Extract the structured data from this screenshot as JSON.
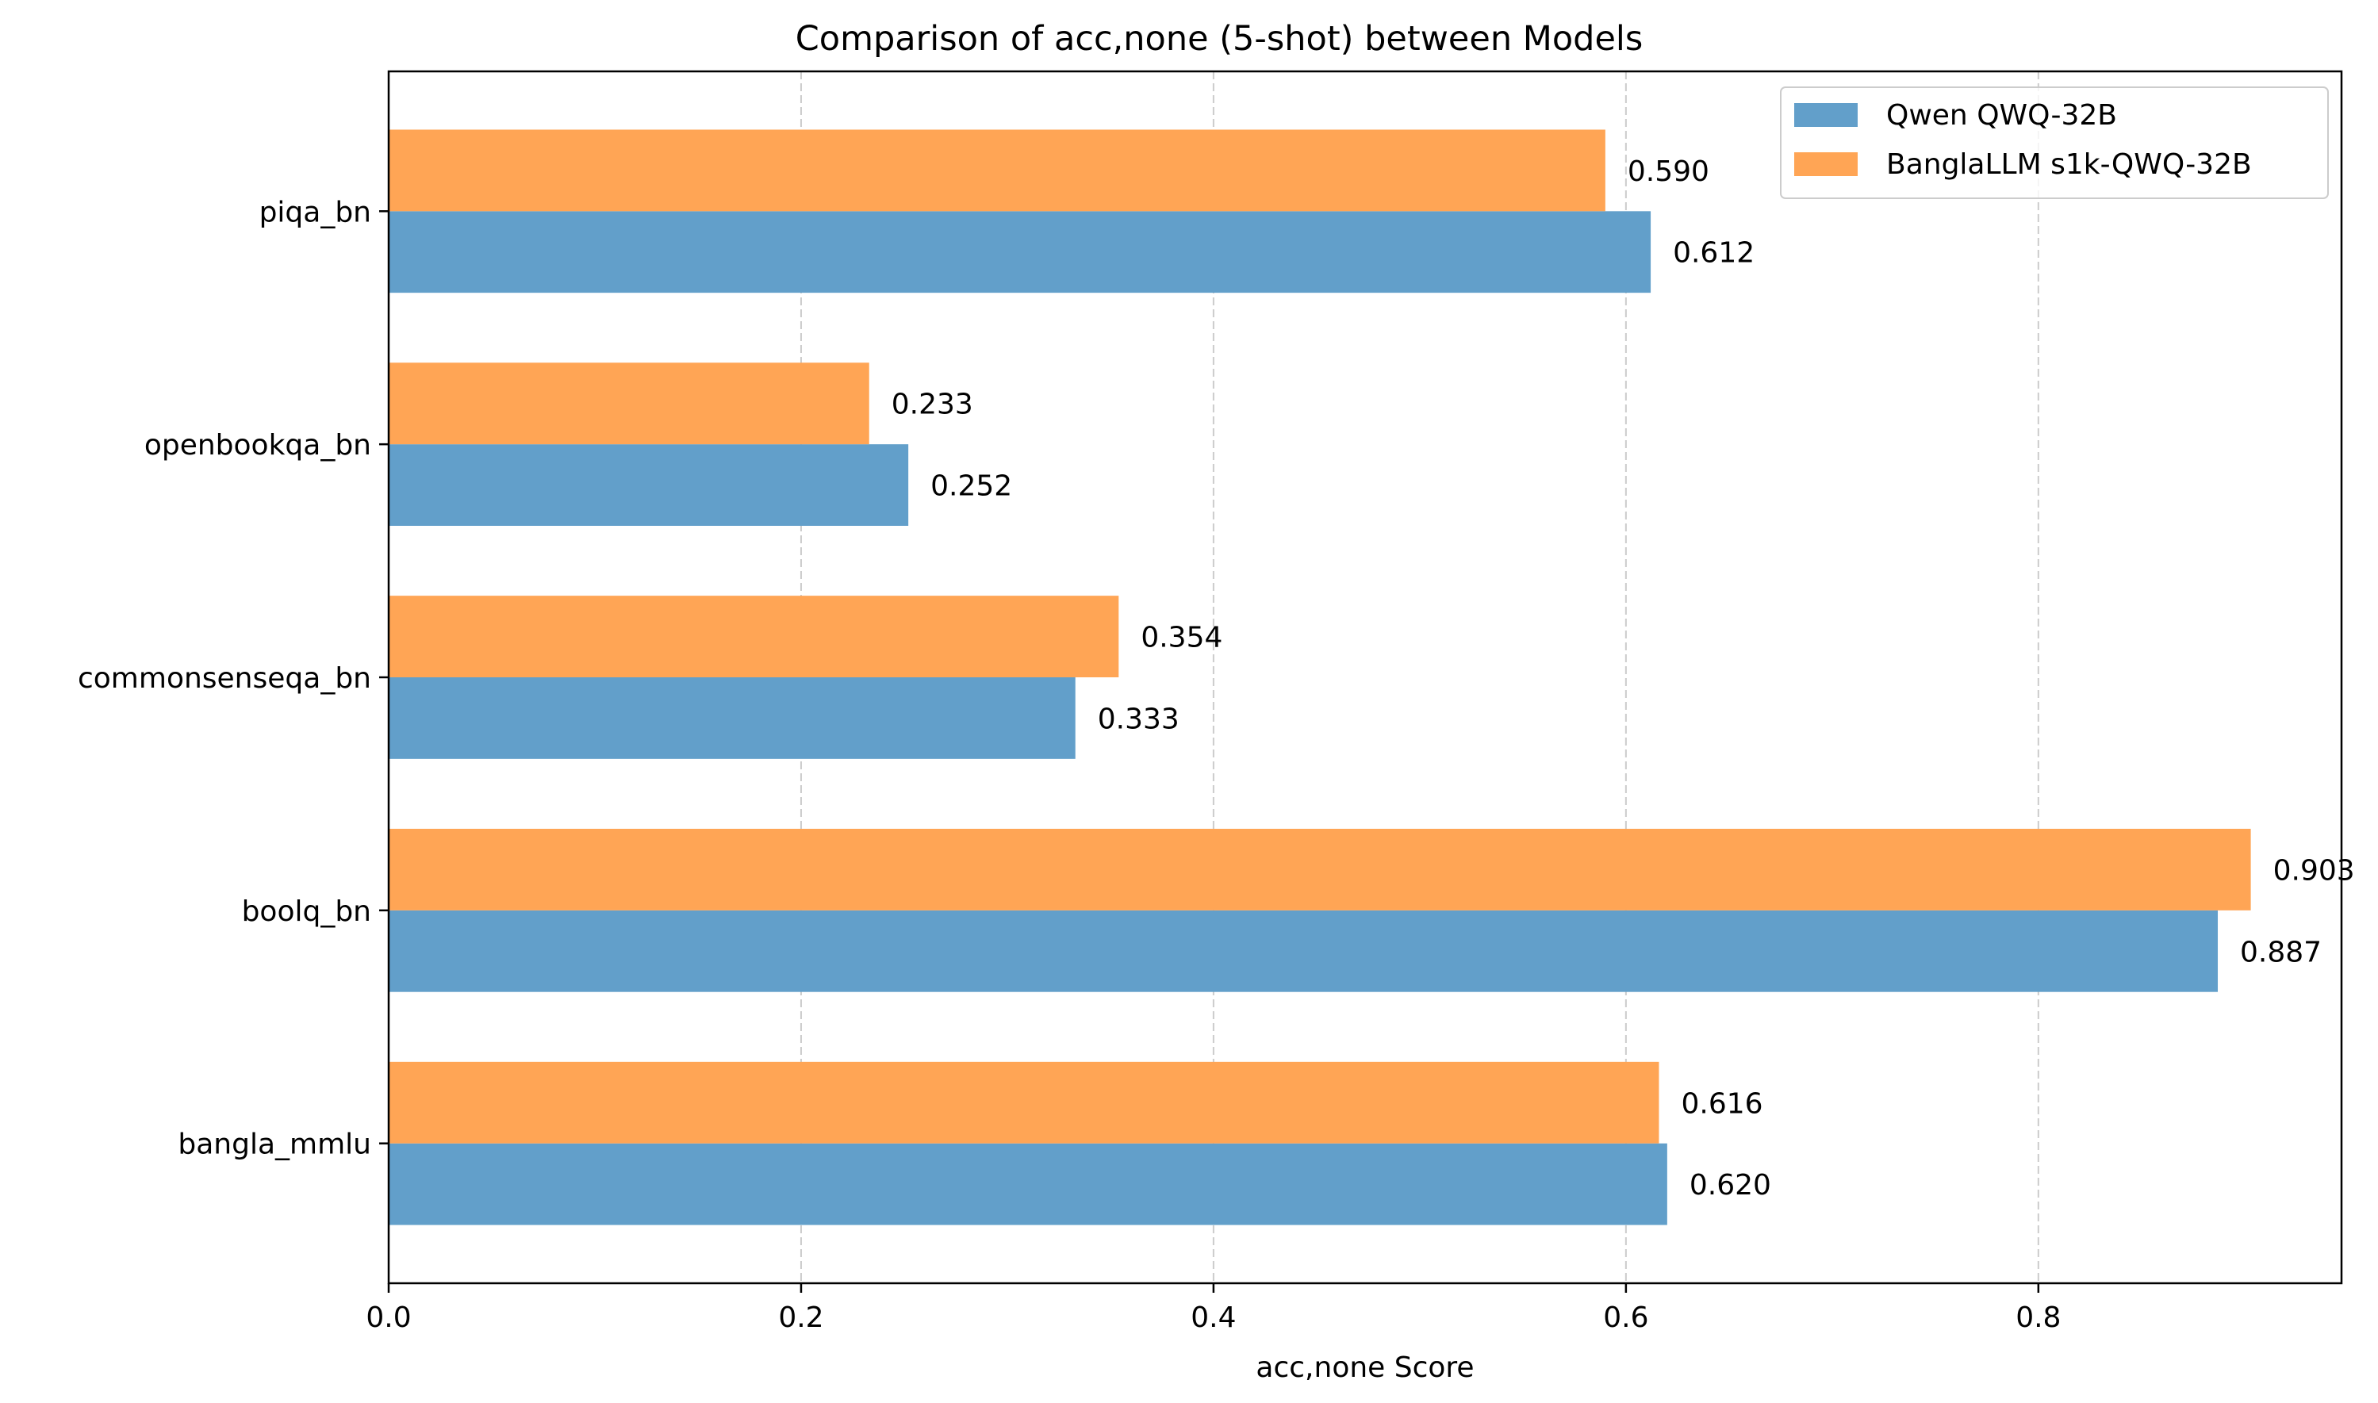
{
  "chart_data": {
    "type": "bar",
    "orientation": "horizontal",
    "title": "Comparison of acc,none (5-shot) between Models",
    "xlabel": "acc,none Score",
    "ylabel": "",
    "xlim": [
      0,
      0.947
    ],
    "xticks": [
      0.0,
      0.2,
      0.4,
      0.6,
      0.8
    ],
    "xtick_labels": [
      "0.0",
      "0.2",
      "0.4",
      "0.6",
      "0.8"
    ],
    "grid": "x, dashed",
    "legend_position": "top-right",
    "categories": [
      "bangla_mmlu",
      "boolq_bn",
      "commonsenseqa_bn",
      "openbookqa_bn",
      "piqa_bn"
    ],
    "series": [
      {
        "name": "Qwen QWQ-32B",
        "color": "#629fca",
        "values": [
          0.62,
          0.887,
          0.333,
          0.252,
          0.612
        ],
        "labels": [
          "0.620",
          "0.887",
          "0.333",
          "0.252",
          "0.612"
        ]
      },
      {
        "name": "BanglaLLM s1k-QWQ-32B",
        "color": "#ffa555",
        "values": [
          0.616,
          0.903,
          0.354,
          0.233,
          0.59
        ],
        "labels": [
          "0.616",
          "0.903",
          "0.354",
          "0.233",
          "0.590"
        ]
      }
    ]
  }
}
